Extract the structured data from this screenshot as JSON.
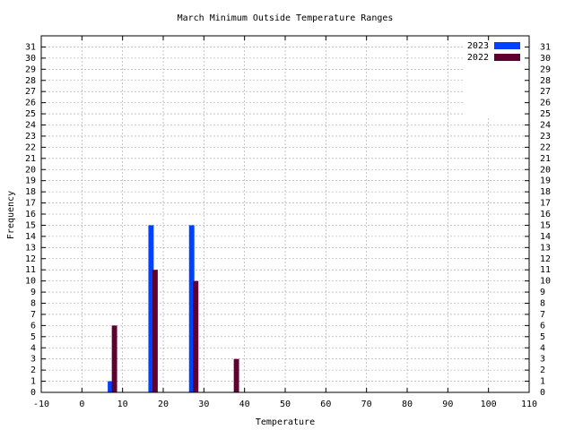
{
  "chart_data": {
    "type": "bar",
    "title": "March Minimum Outside Temperature Ranges",
    "x_label": "Temperature",
    "y_label": "Frequency",
    "series": [
      {
        "name": "2023",
        "color": "#0040ff",
        "x": [
          7,
          17,
          27
        ],
        "values": [
          1,
          15,
          15
        ]
      },
      {
        "name": "2022",
        "color": "#600030",
        "x": [
          8,
          18,
          28,
          38
        ],
        "values": [
          6,
          11,
          10,
          3
        ]
      }
    ],
    "xlim": [
      -10,
      110
    ],
    "xticks": [
      -10,
      0,
      10,
      20,
      30,
      40,
      50,
      60,
      70,
      80,
      90,
      100,
      110
    ],
    "ylim": [
      0,
      32
    ],
    "yticks": [
      0,
      1,
      2,
      3,
      4,
      5,
      6,
      7,
      8,
      9,
      10,
      11,
      12,
      13,
      14,
      15,
      16,
      17,
      18,
      19,
      20,
      21,
      22,
      23,
      24,
      25,
      26,
      27,
      28,
      29,
      30,
      31
    ],
    "grid": true,
    "legend": "top-right"
  }
}
